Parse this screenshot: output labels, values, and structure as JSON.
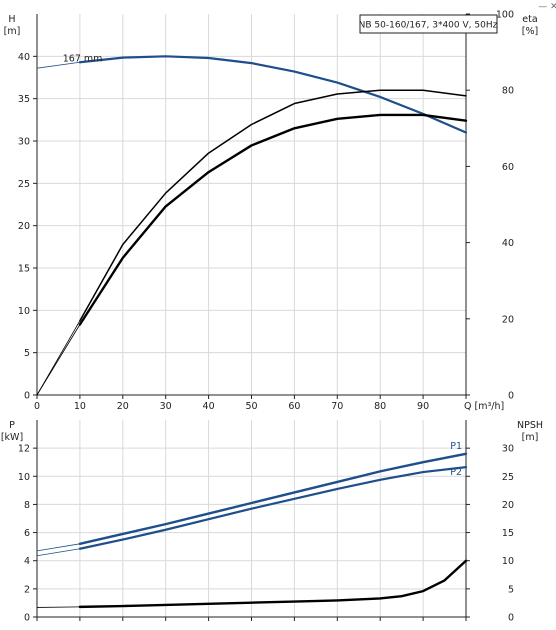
{
  "header": {
    "title": "NB 50-160/167, 3*400 V, 50Hz",
    "corner_mark": "— ✕"
  },
  "colors": {
    "blue": "#1f4e8c",
    "black": "#000000",
    "grid": "#d9d9d9"
  },
  "chart_data": [
    {
      "type": "line",
      "title": "NB 50-160/167, 3*400 V, 50Hz",
      "xlabel": "Q [m³/h]",
      "x_axis_label": "Q [m³/h]",
      "xlim": [
        0,
        100
      ],
      "x_ticks": [
        0,
        10,
        20,
        30,
        40,
        50,
        60,
        70,
        80,
        90
      ],
      "y_left": {
        "label_top": "H",
        "label_unit": "[m]",
        "ylim": [
          0,
          45
        ],
        "ticks": [
          0,
          5,
          10,
          15,
          20,
          25,
          30,
          35,
          40
        ]
      },
      "y_right": {
        "label_top": "eta",
        "label_unit": "[%]",
        "ylim": [
          0,
          100
        ],
        "ticks": [
          0,
          20,
          40,
          60,
          80,
          100
        ]
      },
      "grid": true,
      "series": [
        {
          "name": "167 mm",
          "axis": "left",
          "color": "#1f4e8c",
          "thin_extension": {
            "x": [
              0,
              10
            ],
            "y": [
              38.6,
              39.3
            ]
          },
          "x": [
            10,
            20,
            30,
            40,
            50,
            60,
            70,
            80,
            90,
            100
          ],
          "y": [
            39.3,
            39.85,
            40.0,
            39.8,
            39.2,
            38.2,
            36.9,
            35.2,
            33.2,
            31.0
          ]
        },
        {
          "axis": "right",
          "color": "#000000",
          "thin_extension": {
            "x": [
              0,
              10
            ],
            "y": [
              0,
              19.5
            ]
          },
          "x": [
            10,
            20,
            30,
            40,
            50,
            60,
            70,
            80,
            90,
            100
          ],
          "y": [
            19.5,
            39.5,
            53.0,
            63.5,
            71.0,
            76.5,
            79.0,
            80.0,
            80.0,
            78.5
          ]
        },
        {
          "axis": "right",
          "color": "#000000",
          "bold": true,
          "thin_extension": {
            "x": [
              0,
              10
            ],
            "y": [
              0,
              18.5
            ]
          },
          "x": [
            10,
            20,
            30,
            40,
            50,
            60,
            70,
            80,
            90,
            100
          ],
          "y": [
            18.5,
            36.0,
            49.5,
            58.5,
            65.5,
            70.0,
            72.5,
            73.5,
            73.5,
            72.0
          ]
        }
      ]
    },
    {
      "type": "line",
      "xlim": [
        0,
        100
      ],
      "y_left": {
        "label_top": "P",
        "label_unit": "[kW]",
        "ylim": [
          0,
          14
        ],
        "ticks": [
          0,
          2,
          4,
          6,
          8,
          10,
          12
        ]
      },
      "y_right": {
        "label_top": "NPSH",
        "label_unit": "[m]",
        "ylim": [
          0,
          35
        ],
        "ticks": [
          0,
          5,
          10,
          15,
          20,
          25,
          30
        ]
      },
      "grid": true,
      "series": [
        {
          "name": "P1",
          "axis": "left",
          "color": "#1f4e8c",
          "bold": true,
          "thin_extension": {
            "x": [
              0,
              10
            ],
            "y": [
              4.7,
              5.2
            ]
          },
          "x": [
            10,
            20,
            30,
            40,
            50,
            60,
            70,
            80,
            90,
            100
          ],
          "y": [
            5.2,
            5.9,
            6.6,
            7.35,
            8.1,
            8.85,
            9.6,
            10.35,
            11.0,
            11.6
          ]
        },
        {
          "name": "P2",
          "axis": "left",
          "color": "#1f4e8c",
          "thin_extension": {
            "x": [
              0,
              10
            ],
            "y": [
              4.35,
              4.85
            ]
          },
          "x": [
            10,
            20,
            30,
            40,
            50,
            60,
            70,
            80,
            90,
            100
          ],
          "y": [
            4.85,
            5.5,
            6.2,
            6.95,
            7.7,
            8.4,
            9.1,
            9.75,
            10.3,
            10.65
          ]
        },
        {
          "axis": "right",
          "color": "#000000",
          "bold": true,
          "thin_extension": {
            "x": [
              0,
              10
            ],
            "y": [
              1.7,
              1.8
            ]
          },
          "x": [
            10,
            20,
            30,
            40,
            50,
            60,
            70,
            80,
            85,
            90,
            95,
            100
          ],
          "y": [
            1.8,
            1.95,
            2.15,
            2.35,
            2.55,
            2.75,
            2.95,
            3.3,
            3.7,
            4.6,
            6.5,
            10.0
          ]
        }
      ]
    }
  ]
}
